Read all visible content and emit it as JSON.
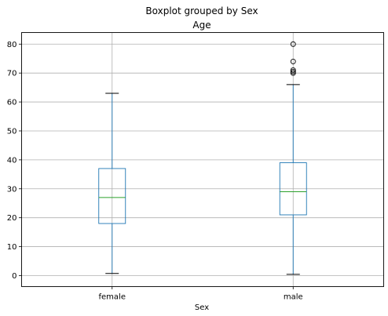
{
  "colors": {
    "box": "#1f77b4",
    "median": "#2ca02c",
    "whisker": "#1f77b4",
    "cap": "#000000",
    "flier": "#000000",
    "grid": "#b0b0b0",
    "axes": "#000000"
  },
  "chart_data": {
    "type": "box",
    "suptitle": "Boxplot grouped by Sex",
    "title": "Age",
    "xlabel": "Sex",
    "ylabel": "",
    "categories": [
      "female",
      "male"
    ],
    "ylim": [
      -3.8,
      84
    ],
    "yticks": [
      0,
      10,
      20,
      30,
      40,
      50,
      60,
      70,
      80
    ],
    "grid": true,
    "boxes": [
      {
        "category": "female",
        "whislo": 0.75,
        "q1": 18,
        "median": 27,
        "q3": 37,
        "whishi": 63,
        "fliers": []
      },
      {
        "category": "male",
        "whislo": 0.42,
        "q1": 21,
        "median": 29,
        "q3": 39,
        "whishi": 66,
        "fliers": [
          70,
          70.5,
          71,
          74,
          80
        ]
      }
    ]
  }
}
